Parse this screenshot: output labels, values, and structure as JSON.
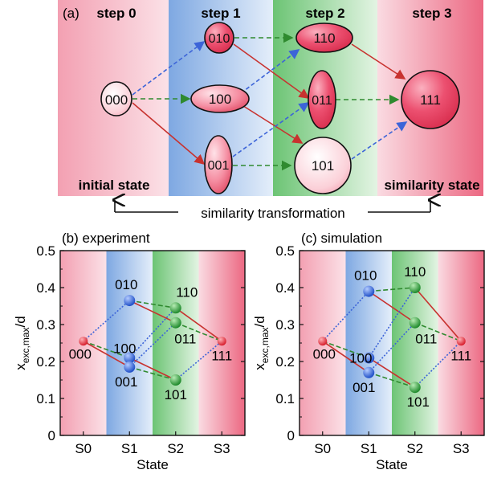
{
  "colors": {
    "pink_band": "#f3a9b9",
    "blue_band": "#8fb4e6",
    "green_band": "#7fcf86",
    "red_band": "#ee6d86",
    "red_line": "#c8322f",
    "green_line": "#2f8a2f",
    "blue_line": "#3c64d8",
    "node_fill": "#f06f86",
    "sphere_red": "#e8323f",
    "sphere_blue": "#2f5ed6",
    "sphere_green": "#2f9a3a"
  },
  "panel_a": {
    "label": "(a)",
    "steps": [
      "step 0",
      "step 1",
      "step 2",
      "step 3"
    ],
    "initial_state": "initial state",
    "similarity_state": "similarity state",
    "transformation": "similarity transformation",
    "nodes": {
      "n000": "000",
      "n010": "010",
      "n100": "100",
      "n001": "001",
      "n110": "110",
      "n011": "011",
      "n101": "101",
      "n111": "111"
    }
  },
  "chart_data": [
    {
      "type": "scatter",
      "title": "(b) experiment",
      "xlabel": "State",
      "ylabel_main": "x",
      "ylabel_sub": "exc,max",
      "ylabel_tail": "/d",
      "categories": [
        "S0",
        "S1",
        "S2",
        "S3"
      ],
      "ylim": [
        0,
        0.5
      ],
      "yticks": [
        "0",
        "0.1",
        "0.2",
        "0.3",
        "0.4",
        "0.5"
      ],
      "points": [
        {
          "label": "000",
          "x": 0,
          "y": 0.255,
          "color": "red"
        },
        {
          "label": "010",
          "x": 1,
          "y": 0.365,
          "color": "blue"
        },
        {
          "label": "100",
          "x": 1,
          "y": 0.21,
          "color": "blue"
        },
        {
          "label": "001",
          "x": 1,
          "y": 0.185,
          "color": "blue"
        },
        {
          "label": "110",
          "x": 2,
          "y": 0.345,
          "color": "green"
        },
        {
          "label": "011",
          "x": 2,
          "y": 0.305,
          "color": "green"
        },
        {
          "label": "101",
          "x": 2,
          "y": 0.15,
          "color": "green"
        },
        {
          "label": "111",
          "x": 3,
          "y": 0.255,
          "color": "red"
        }
      ]
    },
    {
      "type": "scatter",
      "title": "(c) simulation",
      "xlabel": "State",
      "ylabel_main": "x",
      "ylabel_sub": "exc,max",
      "ylabel_tail": "/d",
      "categories": [
        "S0",
        "S1",
        "S2",
        "S3"
      ],
      "ylim": [
        0,
        0.5
      ],
      "yticks": [
        "0",
        "0.1",
        "0.2",
        "0.3",
        "0.4",
        "0.5"
      ],
      "points": [
        {
          "label": "000",
          "x": 0,
          "y": 0.255,
          "color": "red"
        },
        {
          "label": "010",
          "x": 1,
          "y": 0.39,
          "color": "blue"
        },
        {
          "label": "100",
          "x": 1,
          "y": 0.21,
          "color": "blue"
        },
        {
          "label": "001",
          "x": 1,
          "y": 0.17,
          "color": "blue"
        },
        {
          "label": "110",
          "x": 2,
          "y": 0.4,
          "color": "green"
        },
        {
          "label": "011",
          "x": 2,
          "y": 0.305,
          "color": "green"
        },
        {
          "label": "101",
          "x": 2,
          "y": 0.13,
          "color": "green"
        },
        {
          "label": "111",
          "x": 3,
          "y": 0.255,
          "color": "red"
        }
      ]
    }
  ]
}
